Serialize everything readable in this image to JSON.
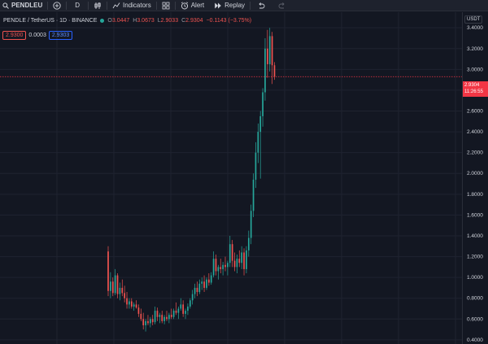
{
  "toolbar": {
    "symbol": "PENDLEU",
    "interval": "D",
    "indicators_label": "Indicators",
    "alert_label": "Alert",
    "replay_label": "Replay",
    "icons": [
      "plus-circle-icon",
      "candles-icon",
      "layout-grid-icon",
      "alert-clock-icon",
      "replay-icon",
      "undo-icon",
      "redo-icon"
    ]
  },
  "legend": {
    "title": "PENDLE / TetherUS · 1D · BINANCE",
    "open_label": "O",
    "open": "3.0447",
    "high_label": "H",
    "high": "3.0673",
    "low_label": "L",
    "low": "2.9033",
    "close_label": "C",
    "close": "2.9304",
    "change": "−0.1143 (−3.75%)"
  },
  "order": {
    "sell_price": "2.9300",
    "spread": "0.0003",
    "buy_price": "2.9303"
  },
  "price_axis": {
    "currency": "USDT",
    "ticks": [
      "3.4000",
      "3.2000",
      "3.0000",
      "2.8000",
      "2.6000",
      "2.4000",
      "2.2000",
      "2.0000",
      "1.8000",
      "1.6000",
      "1.4000",
      "1.2000",
      "1.0000",
      "0.8000",
      "0.6000",
      "0.4000"
    ],
    "last_price": "2.9304",
    "countdown": "11:26:55"
  },
  "colors": {
    "up": "#26a69a",
    "down": "#ef5350",
    "background": "#131722",
    "grid": "#1f2330",
    "price_line": "#f23645"
  },
  "chart_data": {
    "type": "candlestick",
    "ylim": [
      0.36,
      3.55
    ],
    "candles": [
      [
        1.25,
        1.3,
        0.82,
        0.87
      ],
      [
        0.87,
        1.05,
        0.8,
        0.96
      ],
      [
        0.96,
        1.0,
        0.82,
        0.85
      ],
      [
        0.85,
        1.08,
        0.83,
        1.02
      ],
      [
        1.02,
        1.04,
        0.8,
        0.84
      ],
      [
        0.84,
        0.95,
        0.78,
        0.9
      ],
      [
        0.9,
        0.98,
        0.82,
        0.85
      ],
      [
        0.85,
        0.92,
        0.76,
        0.8
      ],
      [
        0.8,
        0.86,
        0.7,
        0.74
      ],
      [
        0.74,
        0.8,
        0.7,
        0.77
      ],
      [
        0.77,
        0.8,
        0.7,
        0.72
      ],
      [
        0.72,
        0.76,
        0.68,
        0.74
      ],
      [
        0.74,
        0.78,
        0.7,
        0.71
      ],
      [
        0.71,
        0.74,
        0.62,
        0.65
      ],
      [
        0.65,
        0.7,
        0.58,
        0.6
      ],
      [
        0.6,
        0.66,
        0.5,
        0.54
      ],
      [
        0.54,
        0.6,
        0.48,
        0.58
      ],
      [
        0.58,
        0.64,
        0.54,
        0.56
      ],
      [
        0.56,
        0.62,
        0.52,
        0.6
      ],
      [
        0.6,
        0.64,
        0.54,
        0.57
      ],
      [
        0.57,
        0.72,
        0.55,
        0.68
      ],
      [
        0.68,
        0.71,
        0.58,
        0.62
      ],
      [
        0.62,
        0.66,
        0.56,
        0.64
      ],
      [
        0.64,
        0.68,
        0.56,
        0.58
      ],
      [
        0.58,
        0.64,
        0.55,
        0.62
      ],
      [
        0.62,
        0.68,
        0.58,
        0.6
      ],
      [
        0.6,
        0.66,
        0.56,
        0.64
      ],
      [
        0.64,
        0.7,
        0.6,
        0.62
      ],
      [
        0.62,
        0.7,
        0.6,
        0.68
      ],
      [
        0.68,
        0.76,
        0.64,
        0.66
      ],
      [
        0.66,
        0.72,
        0.6,
        0.7
      ],
      [
        0.7,
        0.8,
        0.68,
        0.74
      ],
      [
        0.74,
        0.78,
        0.62,
        0.65
      ],
      [
        0.65,
        0.7,
        0.6,
        0.68
      ],
      [
        0.68,
        0.75,
        0.64,
        0.72
      ],
      [
        0.72,
        0.8,
        0.7,
        0.78
      ],
      [
        0.78,
        0.88,
        0.74,
        0.84
      ],
      [
        0.84,
        0.94,
        0.8,
        0.9
      ],
      [
        0.9,
        0.96,
        0.82,
        0.86
      ],
      [
        0.86,
        0.98,
        0.84,
        0.94
      ],
      [
        0.94,
        1.0,
        0.88,
        0.96
      ],
      [
        0.96,
        1.02,
        0.86,
        0.9
      ],
      [
        0.9,
        1.0,
        0.88,
        0.98
      ],
      [
        0.98,
        1.04,
        0.92,
        0.95
      ],
      [
        0.95,
        1.05,
        0.93,
        1.02
      ],
      [
        1.02,
        1.25,
        1.0,
        1.18
      ],
      [
        1.18,
        1.22,
        1.02,
        1.06
      ],
      [
        1.06,
        1.12,
        0.98,
        1.1
      ],
      [
        1.1,
        1.18,
        1.04,
        1.08
      ],
      [
        1.08,
        1.15,
        1.02,
        1.12
      ],
      [
        1.12,
        1.2,
        1.06,
        1.1
      ],
      [
        1.1,
        1.16,
        1.02,
        1.14
      ],
      [
        1.14,
        1.4,
        1.1,
        1.32
      ],
      [
        1.32,
        1.36,
        1.1,
        1.16
      ],
      [
        1.16,
        1.24,
        1.06,
        1.1
      ],
      [
        1.1,
        1.22,
        1.04,
        1.18
      ],
      [
        1.18,
        1.26,
        1.1,
        1.14
      ],
      [
        1.14,
        1.3,
        1.08,
        1.24
      ],
      [
        1.24,
        1.28,
        1.02,
        1.08
      ],
      [
        1.08,
        1.3,
        1.04,
        1.26
      ],
      [
        1.26,
        1.45,
        1.2,
        1.38
      ],
      [
        1.38,
        1.7,
        1.32,
        1.64
      ],
      [
        1.64,
        2.0,
        1.58,
        1.94
      ],
      [
        1.94,
        2.3,
        1.86,
        2.2
      ],
      [
        2.2,
        2.48,
        2.1,
        2.4
      ],
      [
        2.4,
        2.6,
        1.95,
        2.55
      ],
      [
        2.55,
        2.82,
        2.45,
        2.78
      ],
      [
        2.78,
        3.3,
        2.7,
        3.2
      ],
      [
        3.2,
        3.38,
        2.92,
        3.05
      ],
      [
        3.05,
        3.4,
        2.98,
        3.32
      ],
      [
        3.32,
        3.36,
        2.86,
        3.04
      ],
      [
        3.04,
        3.07,
        2.9,
        2.93
      ]
    ]
  }
}
